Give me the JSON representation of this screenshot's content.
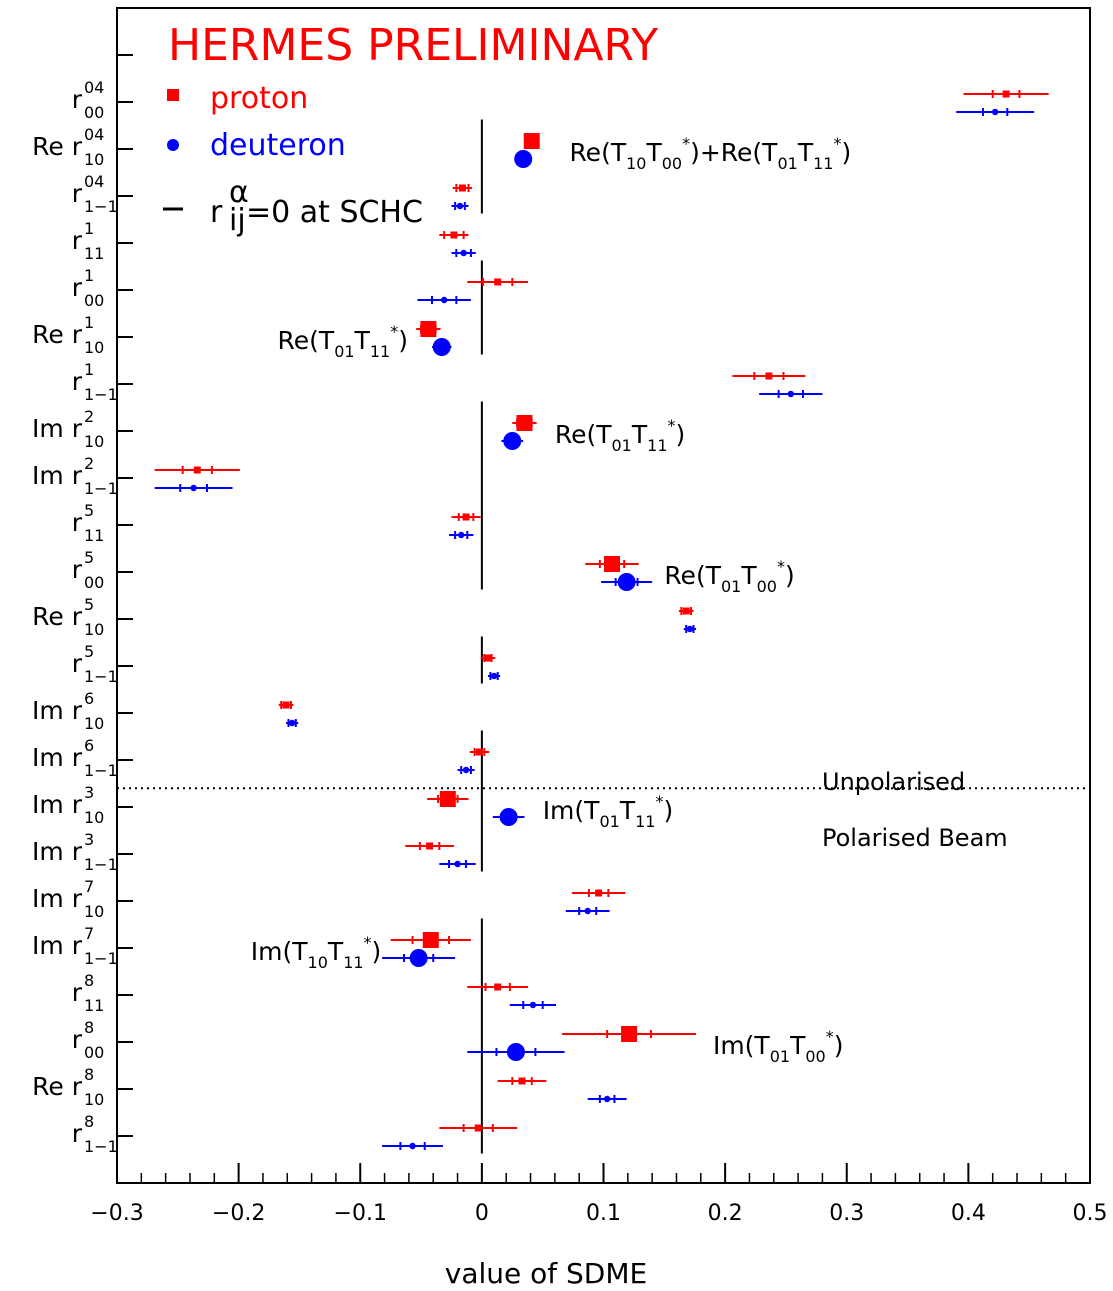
{
  "chart_data": {
    "type": "scatter",
    "title": "HERMES PRELIMINARY",
    "xlabel": "value of SDME",
    "xlim": [
      -0.3,
      0.5
    ],
    "x_ticks": [
      -0.3,
      -0.2,
      -0.1,
      0,
      0.1,
      0.2,
      0.3,
      0.4,
      0.5
    ],
    "x_tick_labels": [
      "−0.3",
      "−0.2",
      "−0.1",
      "0",
      "0.1",
      "0.2",
      "0.3",
      "0.4",
      "0.5"
    ],
    "legend": {
      "placement": "top-left",
      "entries": [
        {
          "label": "proton",
          "color": "#ff0000",
          "marker": "square"
        },
        {
          "label": "deuteron",
          "color": "#0000ff",
          "marker": "circle"
        },
        {
          "label_main": "r",
          "label_sup": "α",
          "label_sub": "ij",
          "label_rest": "=0 at SCHC",
          "color": "#000000",
          "marker": "line"
        }
      ]
    },
    "rows": [
      {
        "pre": "",
        "base": "r",
        "sup": "04",
        "sub": "00"
      },
      {
        "pre": "Re ",
        "base": "r",
        "sup": "04",
        "sub": "10"
      },
      {
        "pre": "",
        "base": "r",
        "sup": "04",
        "sub": "1−1"
      },
      {
        "pre": "",
        "base": "r",
        "sup": "1",
        "sub": "11"
      },
      {
        "pre": "",
        "base": "r",
        "sup": "1",
        "sub": "00"
      },
      {
        "pre": "Re ",
        "base": "r",
        "sup": "1",
        "sub": "10"
      },
      {
        "pre": "",
        "base": "r",
        "sup": "1",
        "sub": "1−1"
      },
      {
        "pre": "Im ",
        "base": "r",
        "sup": "2",
        "sub": "10"
      },
      {
        "pre": "Im ",
        "base": "r",
        "sup": "2",
        "sub": "1−1"
      },
      {
        "pre": "",
        "base": "r",
        "sup": "5",
        "sub": "11"
      },
      {
        "pre": "",
        "base": "r",
        "sup": "5",
        "sub": "00"
      },
      {
        "pre": "Re ",
        "base": "r",
        "sup": "5",
        "sub": "10"
      },
      {
        "pre": "",
        "base": "r",
        "sup": "5",
        "sub": "1−1"
      },
      {
        "pre": "Im ",
        "base": "r",
        "sup": "6",
        "sub": "10"
      },
      {
        "pre": "Im ",
        "base": "r",
        "sup": "6",
        "sub": "1−1"
      },
      {
        "pre": "Im ",
        "base": "r",
        "sup": "3",
        "sub": "10"
      },
      {
        "pre": "Im ",
        "base": "r",
        "sup": "3",
        "sub": "1−1"
      },
      {
        "pre": "Im ",
        "base": "r",
        "sup": "7",
        "sub": "10"
      },
      {
        "pre": "Im ",
        "base": "r",
        "sup": "7",
        "sub": "1−1"
      },
      {
        "pre": "",
        "base": "r",
        "sup": "8",
        "sub": "11"
      },
      {
        "pre": "",
        "base": "r",
        "sup": "8",
        "sub": "00"
      },
      {
        "pre": "Re ",
        "base": "r",
        "sup": "8",
        "sub": "10"
      },
      {
        "pre": "",
        "base": "r",
        "sup": "8",
        "sub": "1−1"
      }
    ],
    "series": [
      {
        "name": "proton",
        "color": "#ff0000",
        "marker": "square",
        "points": [
          {
            "row": 0,
            "x": 0.431,
            "stat": 0.011,
            "tot": 0.035,
            "big": false
          },
          {
            "row": 1,
            "x": 0.041,
            "stat": 0.004,
            "tot": 0.006,
            "big": true
          },
          {
            "row": 2,
            "x": -0.016,
            "stat": 0.005,
            "tot": 0.008,
            "big": false
          },
          {
            "row": 3,
            "x": -0.023,
            "stat": 0.008,
            "tot": 0.012,
            "big": false
          },
          {
            "row": 4,
            "x": 0.013,
            "stat": 0.012,
            "tot": 0.025,
            "big": false
          },
          {
            "row": 5,
            "x": -0.044,
            "stat": 0.006,
            "tot": 0.01,
            "big": true
          },
          {
            "row": 6,
            "x": 0.236,
            "stat": 0.012,
            "tot": 0.03,
            "big": false
          },
          {
            "row": 7,
            "x": 0.035,
            "stat": 0.006,
            "tot": 0.01,
            "big": true
          },
          {
            "row": 8,
            "x": -0.234,
            "stat": 0.012,
            "tot": 0.035,
            "big": false
          },
          {
            "row": 9,
            "x": -0.013,
            "stat": 0.006,
            "tot": 0.012,
            "big": false
          },
          {
            "row": 10,
            "x": 0.107,
            "stat": 0.01,
            "tot": 0.022,
            "big": true
          },
          {
            "row": 11,
            "x": 0.168,
            "stat": 0.004,
            "tot": 0.006,
            "big": false
          },
          {
            "row": 12,
            "x": 0.005,
            "stat": 0.003,
            "tot": 0.006,
            "big": false
          },
          {
            "row": 13,
            "x": -0.161,
            "stat": 0.004,
            "tot": 0.006,
            "big": false
          },
          {
            "row": 14,
            "x": -0.002,
            "stat": 0.004,
            "tot": 0.008,
            "big": false
          },
          {
            "row": 15,
            "x": -0.028,
            "stat": 0.008,
            "tot": 0.017,
            "big": true
          },
          {
            "row": 16,
            "x": -0.043,
            "stat": 0.008,
            "tot": 0.02,
            "big": false
          },
          {
            "row": 17,
            "x": 0.096,
            "stat": 0.008,
            "tot": 0.022,
            "big": false
          },
          {
            "row": 18,
            "x": -0.042,
            "stat": 0.015,
            "tot": 0.033,
            "big": true
          },
          {
            "row": 19,
            "x": 0.013,
            "stat": 0.01,
            "tot": 0.025,
            "big": false
          },
          {
            "row": 20,
            "x": 0.121,
            "stat": 0.018,
            "tot": 0.055,
            "big": true
          },
          {
            "row": 21,
            "x": 0.033,
            "stat": 0.008,
            "tot": 0.02,
            "big": false
          },
          {
            "row": 22,
            "x": -0.003,
            "stat": 0.012,
            "tot": 0.032,
            "big": false
          }
        ]
      },
      {
        "name": "deuteron",
        "color": "#0000ff",
        "marker": "circle",
        "points": [
          {
            "row": 0,
            "x": 0.422,
            "stat": 0.01,
            "tot": 0.032,
            "big": false
          },
          {
            "row": 1,
            "x": 0.034,
            "stat": 0.004,
            "tot": 0.006,
            "big": true
          },
          {
            "row": 2,
            "x": -0.018,
            "stat": 0.004,
            "tot": 0.007,
            "big": false
          },
          {
            "row": 3,
            "x": -0.015,
            "stat": 0.006,
            "tot": 0.01,
            "big": false
          },
          {
            "row": 4,
            "x": -0.031,
            "stat": 0.01,
            "tot": 0.022,
            "big": false
          },
          {
            "row": 5,
            "x": -0.033,
            "stat": 0.005,
            "tot": 0.008,
            "big": true
          },
          {
            "row": 6,
            "x": 0.254,
            "stat": 0.01,
            "tot": 0.026,
            "big": false
          },
          {
            "row": 7,
            "x": 0.025,
            "stat": 0.005,
            "tot": 0.009,
            "big": true
          },
          {
            "row": 8,
            "x": -0.237,
            "stat": 0.011,
            "tot": 0.032,
            "big": false
          },
          {
            "row": 9,
            "x": -0.017,
            "stat": 0.005,
            "tot": 0.01,
            "big": false
          },
          {
            "row": 10,
            "x": 0.119,
            "stat": 0.009,
            "tot": 0.021,
            "big": true
          },
          {
            "row": 11,
            "x": 0.171,
            "stat": 0.003,
            "tot": 0.005,
            "big": false
          },
          {
            "row": 12,
            "x": 0.01,
            "stat": 0.003,
            "tot": 0.005,
            "big": false
          },
          {
            "row": 13,
            "x": -0.156,
            "stat": 0.003,
            "tot": 0.005,
            "big": false
          },
          {
            "row": 14,
            "x": -0.013,
            "stat": 0.004,
            "tot": 0.007,
            "big": false
          },
          {
            "row": 15,
            "x": 0.022,
            "stat": 0.006,
            "tot": 0.013,
            "big": true
          },
          {
            "row": 16,
            "x": -0.02,
            "stat": 0.007,
            "tot": 0.015,
            "big": false
          },
          {
            "row": 17,
            "x": 0.087,
            "stat": 0.007,
            "tot": 0.018,
            "big": false
          },
          {
            "row": 18,
            "x": -0.052,
            "stat": 0.012,
            "tot": 0.03,
            "big": true
          },
          {
            "row": 19,
            "x": 0.042,
            "stat": 0.008,
            "tot": 0.019,
            "big": false
          },
          {
            "row": 20,
            "x": 0.028,
            "stat": 0.016,
            "tot": 0.04,
            "big": true
          },
          {
            "row": 21,
            "x": 0.103,
            "stat": 0.006,
            "tot": 0.016,
            "big": false
          },
          {
            "row": 22,
            "x": -0.057,
            "stat": 0.01,
            "tot": 0.025,
            "big": false
          }
        ]
      }
    ],
    "schc_zero_rows": [
      1,
      2,
      4,
      5,
      7,
      8,
      9,
      10,
      12,
      14,
      15,
      16,
      18,
      19,
      20,
      21,
      22
    ],
    "annotations": [
      {
        "row": 1,
        "x": 0.072,
        "pieces": [
          [
            "Re(T",
            ""
          ],
          [
            "10",
            "sub"
          ],
          [
            "T",
            ""
          ],
          [
            "00",
            "sub"
          ],
          [
            "*",
            "sup"
          ],
          [
            ")+Re(T",
            ""
          ],
          [
            "01",
            "sub"
          ],
          [
            "T",
            ""
          ],
          [
            "11",
            "sub"
          ],
          [
            "*",
            "sup"
          ],
          [
            ")",
            ""
          ]
        ]
      },
      {
        "row": 5,
        "x": -0.168,
        "pieces": [
          [
            "Re(T",
            ""
          ],
          [
            "01",
            "sub"
          ],
          [
            "T",
            ""
          ],
          [
            "11",
            "sub"
          ],
          [
            "*",
            "sup"
          ],
          [
            ")",
            ""
          ]
        ]
      },
      {
        "row": 7,
        "x": 0.06,
        "pieces": [
          [
            "Re(T",
            ""
          ],
          [
            "01",
            "sub"
          ],
          [
            "T",
            ""
          ],
          [
            "11",
            "sub"
          ],
          [
            "*",
            "sup"
          ],
          [
            ")",
            ""
          ]
        ]
      },
      {
        "row": 10,
        "x": 0.15,
        "pieces": [
          [
            "Re(T",
            ""
          ],
          [
            "01",
            "sub"
          ],
          [
            "T",
            ""
          ],
          [
            "00",
            "sub"
          ],
          [
            "*",
            "sup"
          ],
          [
            ")",
            ""
          ]
        ]
      },
      {
        "row": 15,
        "x": 0.05,
        "pieces": [
          [
            "Im(T",
            ""
          ],
          [
            "01",
            "sub"
          ],
          [
            "T",
            ""
          ],
          [
            "11",
            "sub"
          ],
          [
            "*",
            "sup"
          ],
          [
            ")",
            ""
          ]
        ]
      },
      {
        "row": 18,
        "x": -0.19,
        "pieces": [
          [
            "Im(T",
            ""
          ],
          [
            "10",
            "sub"
          ],
          [
            "T",
            ""
          ],
          [
            "11",
            "sub"
          ],
          [
            "*",
            "sup"
          ],
          [
            ")",
            ""
          ]
        ]
      },
      {
        "row": 20,
        "x": 0.19,
        "pieces": [
          [
            "Im(T",
            ""
          ],
          [
            "01",
            "sub"
          ],
          [
            "T",
            ""
          ],
          [
            "00",
            "sub"
          ],
          [
            "*",
            "sup"
          ],
          [
            ")",
            ""
          ]
        ]
      }
    ],
    "divider_labels": {
      "above": "Unpolarised",
      "below": "Polarised Beam"
    }
  }
}
